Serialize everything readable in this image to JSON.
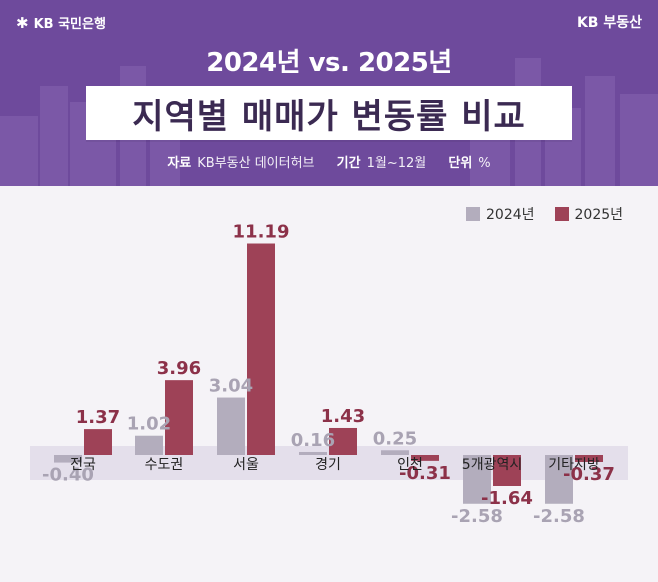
{
  "brand": {
    "left": "KB 국민은행",
    "right": "KB 부동산"
  },
  "header": {
    "compare": "2024년 vs. 2025년",
    "title": "지역별 매매가 변동률 비교",
    "meta": [
      {
        "key": "자료",
        "value": "KB부동산 데이터허브"
      },
      {
        "key": "기간",
        "value": "1월~12월"
      },
      {
        "key": "단위",
        "value": "%"
      }
    ]
  },
  "colors": {
    "header_bg": "#6e4a9c",
    "series_2024": "#b3adbd",
    "series_2025": "#9e4257",
    "category_band": "#e4dfeb"
  },
  "chart_data": {
    "type": "bar",
    "title": "지역별 매매가 변동률 비교",
    "unit": "%",
    "categories": [
      "전국",
      "수도권",
      "서울",
      "경기",
      "인천",
      "5개광역시",
      "기타지방"
    ],
    "series": [
      {
        "name": "2024년",
        "values": [
          -0.4,
          1.02,
          3.04,
          0.16,
          0.25,
          -2.58,
          -2.58
        ]
      },
      {
        "name": "2025년",
        "values": [
          1.37,
          3.96,
          11.19,
          1.43,
          -0.31,
          -1.64,
          -0.37
        ]
      }
    ],
    "labels_2024": [
      "-0.40",
      "1.02",
      "3.04",
      "0.16",
      "0.25",
      "-2.58",
      "-2.58"
    ],
    "labels_2025": [
      "1.37",
      "3.96",
      "11.19",
      "1.43",
      "-0.31",
      "-1.64",
      "-0.37"
    ],
    "ylim": [
      -3,
      12
    ],
    "legend_position": "top-right",
    "grid": false
  }
}
